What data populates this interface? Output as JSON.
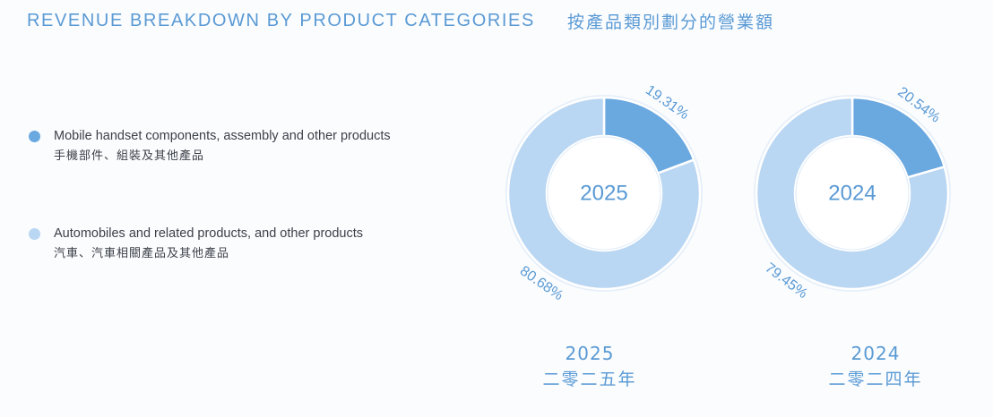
{
  "title": {
    "en": "REVENUE BREAKDOWN BY PRODUCT CATEGORIES",
    "zh": "按產品類別劃分的營業額"
  },
  "colors": {
    "mobile": "#6aa8e0",
    "auto": "#b9d6f2",
    "text_accent": "#5a9ad4"
  },
  "legend": [
    {
      "en": "Mobile handset components, assembly and other products",
      "zh": "手機部件、組裝及其他產品",
      "color": "#6aa8e0"
    },
    {
      "en": "Automobiles and related products, and other products",
      "zh": "汽車、汽車相關產品及其他產品",
      "color": "#b9d6f2"
    }
  ],
  "charts": [
    {
      "center_label": "2025",
      "year_en": "2025",
      "year_zh": "二零二五年"
    },
    {
      "center_label": "2024",
      "year_en": "2024",
      "year_zh": "二零二四年"
    }
  ],
  "chart_data": [
    {
      "type": "pie",
      "title": "2025",
      "categories": [
        "Mobile handset components, assembly and other products",
        "Automobiles and related products, and other products"
      ],
      "values": [
        19.31,
        80.68
      ],
      "labels": [
        "19.31%",
        "80.68%"
      ]
    },
    {
      "type": "pie",
      "title": "2024",
      "categories": [
        "Mobile handset components, assembly and other products",
        "Automobiles and related products, and other products"
      ],
      "values": [
        20.54,
        79.45
      ],
      "labels": [
        "20.54%",
        "79.45%"
      ]
    }
  ]
}
